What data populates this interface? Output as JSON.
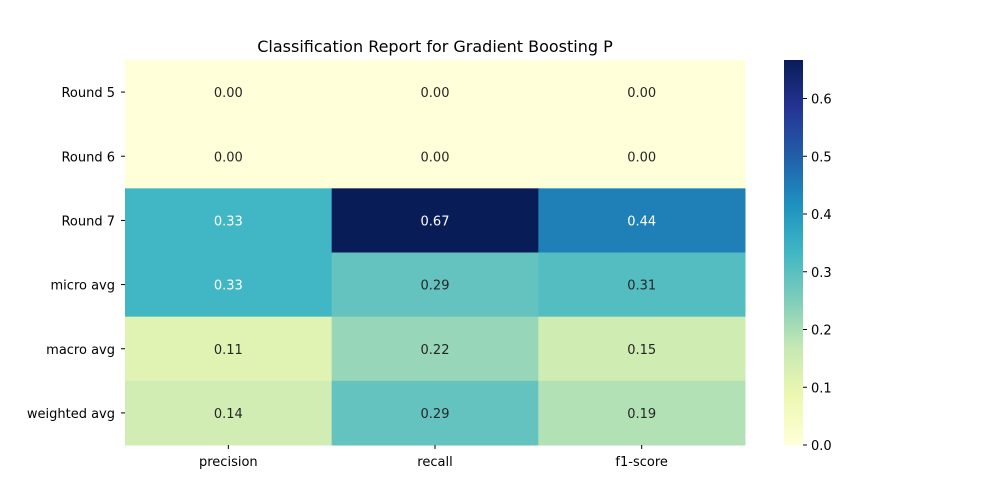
{
  "chart_data": {
    "type": "heatmap",
    "title": "Classification Report for Gradient Boosting P",
    "rows": [
      "Round 5",
      "Round 6",
      "Round 7",
      "micro avg",
      "macro avg",
      "weighted avg"
    ],
    "columns": [
      "precision",
      "recall",
      "f1-score"
    ],
    "values": [
      [
        0.0,
        0.0,
        0.0
      ],
      [
        0.0,
        0.0,
        0.0
      ],
      [
        0.3333,
        0.6667,
        0.4444
      ],
      [
        0.3333,
        0.2857,
        0.3077
      ],
      [
        0.1111,
        0.2222,
        0.1481
      ],
      [
        0.1429,
        0.2857,
        0.1905
      ]
    ],
    "labels": [
      [
        "0.00",
        "0.00",
        "0.00"
      ],
      [
        "0.00",
        "0.00",
        "0.00"
      ],
      [
        "0.33",
        "0.67",
        "0.44"
      ],
      [
        "0.33",
        "0.29",
        "0.31"
      ],
      [
        "0.11",
        "0.22",
        "0.15"
      ],
      [
        "0.14",
        "0.29",
        "0.19"
      ]
    ],
    "colormap": "YlGnBu",
    "vmin": 0,
    "vmax": 0.6667,
    "colorbar_ticks": [
      "0.0",
      "0.1",
      "0.2",
      "0.3",
      "0.4",
      "0.5",
      "0.6"
    ],
    "grid": false,
    "legend": "right-colorbar"
  }
}
